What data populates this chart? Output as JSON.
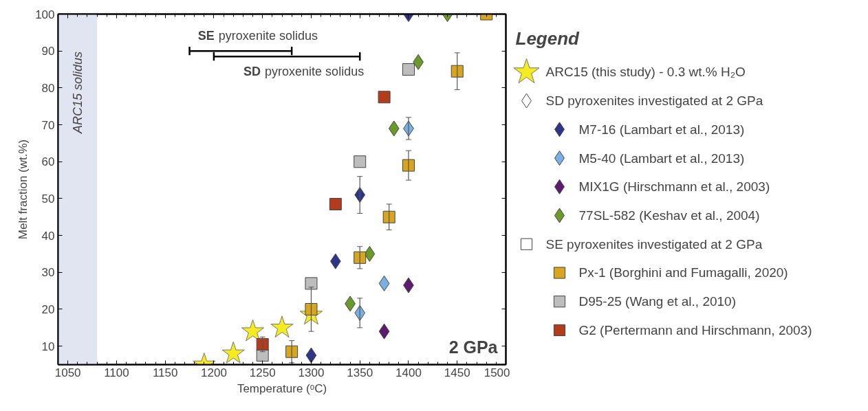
{
  "chart_data": {
    "type": "scatter",
    "xlabel": "Temperature (ᵒC)",
    "ylabel": "Melt fraction (wt.%)",
    "legend_title": "Legend",
    "legend": "right",
    "xlim": [
      1040,
      1500
    ],
    "ylim": [
      5,
      100
    ],
    "xticks": [
      1050,
      1100,
      1150,
      1200,
      1250,
      1300,
      1350,
      1400,
      1450,
      1500
    ],
    "yticks": [
      10,
      20,
      30,
      40,
      50,
      60,
      70,
      80,
      90,
      100
    ],
    "grid": false,
    "bands": [
      {
        "axis": "x",
        "from": 1040,
        "to": 1080,
        "label": "ARC15 solidus",
        "color": "#e1e4f1"
      }
    ],
    "annotations": [
      "2 GPa"
    ],
    "series": [
      {
        "name": "ARC15 (this study) - 0.3 wt.% H₂O",
        "marker": "star",
        "color": "#f5eb1e",
        "x": [
          1190,
          1220,
          1240,
          1270,
          1300
        ],
        "values": [
          5,
          8,
          14,
          15,
          18.5
        ]
      },
      {
        "name": "SD pyroxenites investigated at 2 GPa",
        "marker": "diamond",
        "color": "#ffffff"
      },
      {
        "name": "M7-16 (Lambart et al., 2013)",
        "marker": "diamond",
        "color": "#2e3589",
        "x": [
          1400,
          1350,
          1325,
          1300
        ],
        "values": [
          100,
          51,
          33,
          7.5
        ],
        "errors": [
          null,
          5,
          null,
          null
        ]
      },
      {
        "name": "M5-40 (Lambart et al., 2013)",
        "marker": "diamond",
        "color": "#78b0e4",
        "x": [
          1400,
          1375,
          1350
        ],
        "values": [
          69,
          27,
          19
        ],
        "errors": [
          3,
          null,
          4
        ]
      },
      {
        "name": "MIX1G (Hirschmann et al., 2003)",
        "marker": "diamond",
        "color": "#5e1a6e",
        "x": [
          1400,
          1375
        ],
        "values": [
          26.5,
          14
        ]
      },
      {
        "name": "77SL-582 (Keshav et al., 2004)",
        "marker": "diamond",
        "color": "#6c9a2a",
        "x": [
          1440,
          1410,
          1385,
          1360,
          1340
        ],
        "values": [
          100,
          87,
          69,
          35,
          21.5
        ]
      },
      {
        "name": "SE pyroxenites investigated at 2 GPa",
        "marker": "square",
        "color": "#ffffff"
      },
      {
        "name": "Px-1 (Borghini and Fumagalli, 2020)",
        "marker": "square",
        "color": "#d8a520",
        "x": [
          1480,
          1450,
          1400,
          1380,
          1350,
          1300,
          1280
        ],
        "values": [
          100,
          84.5,
          59,
          45,
          34,
          20,
          8.5
        ],
        "errors": [
          null,
          5,
          4,
          3.5,
          3,
          6,
          3
        ]
      },
      {
        "name": "D95-25 (Wang et al., 2010)",
        "marker": "square",
        "color": "#bdbdbd",
        "x": [
          1400,
          1350,
          1300,
          1250
        ],
        "values": [
          85,
          60,
          27,
          7.5
        ]
      },
      {
        "name": "G2 (Pertermann and Hirschmann, 2003)",
        "marker": "square",
        "color": "#b23c1c",
        "x": [
          1375,
          1325,
          1250
        ],
        "values": [
          77.5,
          48.5,
          10.5
        ],
        "errors": [
          null,
          null,
          2
        ]
      },
      {
        "name": "SE pyroxenite solidus",
        "type": "line",
        "color": "#000000",
        "x": [
          1175,
          1280
        ],
        "values": [
          90,
          90
        ]
      },
      {
        "name": "SD pyroxenite solidus",
        "type": "line",
        "color": "#000000",
        "x": [
          1200,
          1350
        ],
        "values": [
          88.5,
          88.5
        ]
      }
    ]
  }
}
